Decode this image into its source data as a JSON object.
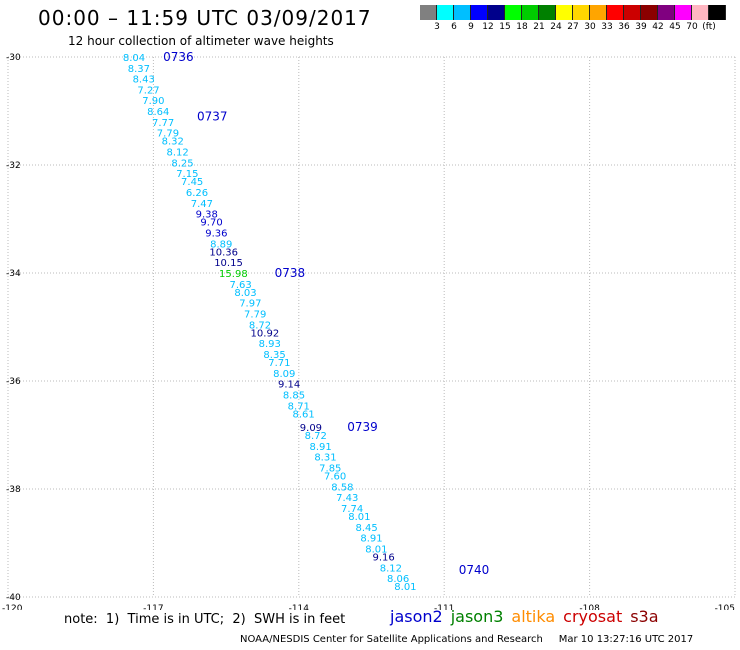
{
  "header": {
    "title": "00:00 – 11:59 UTC 03/09/2017",
    "subtitle": "12 hour collection of altimeter wave heights"
  },
  "colorbar": {
    "colors": [
      "#808080",
      "#00ffff",
      "#00bfff",
      "#0000ff",
      "#00008b",
      "#00ff00",
      "#00cc00",
      "#008000",
      "#ffff00",
      "#ffd700",
      "#ffa500",
      "#ff0000",
      "#cc0000",
      "#8b0000",
      "#800080",
      "#ff00ff",
      "#ffb6c1",
      "#000000"
    ],
    "labels": [
      "3",
      "6",
      "9",
      "12",
      "15",
      "18",
      "21",
      "24",
      "27",
      "30",
      "33",
      "36",
      "39",
      "42",
      "45",
      "70",
      "(ft)"
    ]
  },
  "map": {
    "lat_labels": [
      "-30",
      "-32",
      "-34",
      "-36",
      "-38",
      "-40"
    ],
    "lon_labels": [
      "-120",
      "-117",
      "-114",
      "-111",
      "-108",
      "-105"
    ],
    "times": [
      {
        "label": "0736",
        "lat": -30.0,
        "lon": -116.8
      },
      {
        "label": "0737",
        "lat": -31.1,
        "lon": -116.1
      },
      {
        "label": "0738",
        "lat": -34.0,
        "lon": -114.5
      },
      {
        "label": "0739",
        "lat": -36.85,
        "lon": -113.0
      },
      {
        "label": "0740",
        "lat": -39.5,
        "lon": -110.7
      }
    ],
    "values": [
      {
        "v": "8.04",
        "lat": -30.0,
        "lon": -117.4,
        "c": "#00bfff"
      },
      {
        "v": "8.37",
        "lat": -30.2,
        "lon": -117.3,
        "c": "#00bfff"
      },
      {
        "v": "8.43",
        "lat": -30.4,
        "lon": -117.2,
        "c": "#00bfff"
      },
      {
        "v": "7.27",
        "lat": -30.6,
        "lon": -117.1,
        "c": "#00bfff"
      },
      {
        "v": "7.90",
        "lat": -30.8,
        "lon": -117.0,
        "c": "#00bfff"
      },
      {
        "v": "8.64",
        "lat": -31.0,
        "lon": -116.9,
        "c": "#00bfff"
      },
      {
        "v": "7.77",
        "lat": -31.2,
        "lon": -116.8,
        "c": "#00bfff"
      },
      {
        "v": "7.79",
        "lat": -31.4,
        "lon": -116.7,
        "c": "#00bfff"
      },
      {
        "v": "8.32",
        "lat": -31.55,
        "lon": -116.6,
        "c": "#00bfff"
      },
      {
        "v": "8.12",
        "lat": -31.75,
        "lon": -116.5,
        "c": "#00bfff"
      },
      {
        "v": "8.25",
        "lat": -31.95,
        "lon": -116.4,
        "c": "#00bfff"
      },
      {
        "v": "7.15",
        "lat": -32.15,
        "lon": -116.3,
        "c": "#00bfff"
      },
      {
        "v": "7.45",
        "lat": -32.3,
        "lon": -116.2,
        "c": "#00bfff"
      },
      {
        "v": "6.26",
        "lat": -32.5,
        "lon": -116.1,
        "c": "#00bfff"
      },
      {
        "v": "7.47",
        "lat": -32.7,
        "lon": -116.0,
        "c": "#00bfff"
      },
      {
        "v": "9.38",
        "lat": -32.9,
        "lon": -115.9,
        "c": "#0000cc"
      },
      {
        "v": "9.70",
        "lat": -33.05,
        "lon": -115.8,
        "c": "#0000cc"
      },
      {
        "v": "9.36",
        "lat": -33.25,
        "lon": -115.7,
        "c": "#0000cc"
      },
      {
        "v": "8.89",
        "lat": -33.45,
        "lon": -115.6,
        "c": "#00bfff"
      },
      {
        "v": "10.36",
        "lat": -33.6,
        "lon": -115.55,
        "c": "#00008b"
      },
      {
        "v": "10.15",
        "lat": -33.8,
        "lon": -115.45,
        "c": "#00008b"
      },
      {
        "v": "15.98",
        "lat": -34.0,
        "lon": -115.35,
        "c": "#00cc00"
      },
      {
        "v": "7.63",
        "lat": -34.2,
        "lon": -115.2,
        "c": "#00bfff"
      },
      {
        "v": "8.03",
        "lat": -34.35,
        "lon": -115.1,
        "c": "#00bfff"
      },
      {
        "v": "7.97",
        "lat": -34.55,
        "lon": -115.0,
        "c": "#00bfff"
      },
      {
        "v": "7.79",
        "lat": -34.75,
        "lon": -114.9,
        "c": "#00bfff"
      },
      {
        "v": "8.72",
        "lat": -34.95,
        "lon": -114.8,
        "c": "#00bfff"
      },
      {
        "v": "10.92",
        "lat": -35.1,
        "lon": -114.7,
        "c": "#00008b"
      },
      {
        "v": "8.93",
        "lat": -35.3,
        "lon": -114.6,
        "c": "#00bfff"
      },
      {
        "v": "8.35",
        "lat": -35.5,
        "lon": -114.5,
        "c": "#00bfff"
      },
      {
        "v": "7.71",
        "lat": -35.65,
        "lon": -114.4,
        "c": "#00bfff"
      },
      {
        "v": "8.09",
        "lat": -35.85,
        "lon": -114.3,
        "c": "#00bfff"
      },
      {
        "v": "9.14",
        "lat": -36.05,
        "lon": -114.2,
        "c": "#00008b"
      },
      {
        "v": "8.85",
        "lat": -36.25,
        "lon": -114.1,
        "c": "#00bfff"
      },
      {
        "v": "8.71",
        "lat": -36.45,
        "lon": -114.0,
        "c": "#00bfff"
      },
      {
        "v": "8.61",
        "lat": -36.6,
        "lon": -113.9,
        "c": "#00bfff"
      },
      {
        "v": "9.09",
        "lat": -36.85,
        "lon": -113.75,
        "c": "#00008b"
      },
      {
        "v": "8.72",
        "lat": -37.0,
        "lon": -113.65,
        "c": "#00bfff"
      },
      {
        "v": "8.91",
        "lat": -37.2,
        "lon": -113.55,
        "c": "#00bfff"
      },
      {
        "v": "8.31",
        "lat": -37.4,
        "lon": -113.45,
        "c": "#00bfff"
      },
      {
        "v": "7.85",
        "lat": -37.6,
        "lon": -113.35,
        "c": "#00bfff"
      },
      {
        "v": "7.60",
        "lat": -37.75,
        "lon": -113.25,
        "c": "#00bfff"
      },
      {
        "v": "8.58",
        "lat": -37.95,
        "lon": -113.1,
        "c": "#00bfff"
      },
      {
        "v": "7.43",
        "lat": -38.15,
        "lon": -113.0,
        "c": "#00bfff"
      },
      {
        "v": "7.74",
        "lat": -38.35,
        "lon": -112.9,
        "c": "#00bfff"
      },
      {
        "v": "8.01",
        "lat": -38.5,
        "lon": -112.75,
        "c": "#00bfff"
      },
      {
        "v": "8.45",
        "lat": -38.7,
        "lon": -112.6,
        "c": "#00bfff"
      },
      {
        "v": "8.91",
        "lat": -38.9,
        "lon": -112.5,
        "c": "#00bfff"
      },
      {
        "v": "8.01",
        "lat": -39.1,
        "lon": -112.4,
        "c": "#00bfff"
      },
      {
        "v": "9.16",
        "lat": -39.25,
        "lon": -112.25,
        "c": "#00008b"
      },
      {
        "v": "8.12",
        "lat": -39.45,
        "lon": -112.1,
        "c": "#00bfff"
      },
      {
        "v": "8.06",
        "lat": -39.65,
        "lon": -111.95,
        "c": "#00bfff"
      },
      {
        "v": "8.01",
        "lat": -39.8,
        "lon": -111.8,
        "c": "#00bfff"
      }
    ]
  },
  "note": "note:  1)  Time is in UTC;  2)  SWH is in feet",
  "legend": [
    {
      "name": "jason2",
      "color": "#0000cc"
    },
    {
      "name": "jason3",
      "color": "#008000"
    },
    {
      "name": "altika",
      "color": "#ff8c00"
    },
    {
      "name": "cryosat",
      "color": "#cc0000"
    },
    {
      "name": "s3a",
      "color": "#8b0000"
    }
  ],
  "footer": "NOAA/NESDIS Center for Satellite Applications and Research     Mar 10 13:27:16 UTC 2017"
}
